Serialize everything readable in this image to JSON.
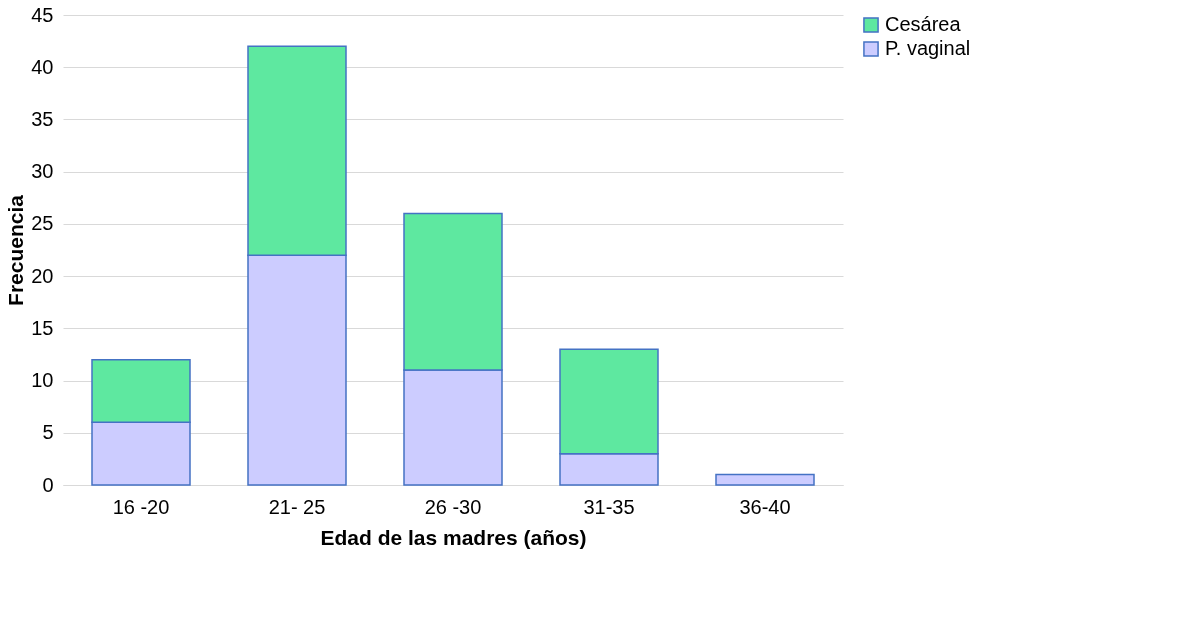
{
  "chart_data": {
    "type": "bar",
    "stacked": true,
    "xlabel": "Edad de las madres (años)",
    "ylabel": "Frecuencia",
    "categories": [
      "16 -20",
      "21- 25",
      "26 -30",
      "31-35",
      "36-40"
    ],
    "series": [
      {
        "name": "P. vaginal",
        "color": "#ccccff",
        "values": [
          6,
          22,
          11,
          3,
          1
        ]
      },
      {
        "name": "Cesárea",
        "color": "#5ee8a0",
        "values": [
          6,
          20,
          15,
          10,
          null
        ]
      }
    ],
    "ylim": [
      0,
      45
    ],
    "yticks": [
      0,
      5,
      10,
      15,
      20,
      25,
      30,
      35,
      40,
      45
    ],
    "grid": "y",
    "legend": "right"
  }
}
